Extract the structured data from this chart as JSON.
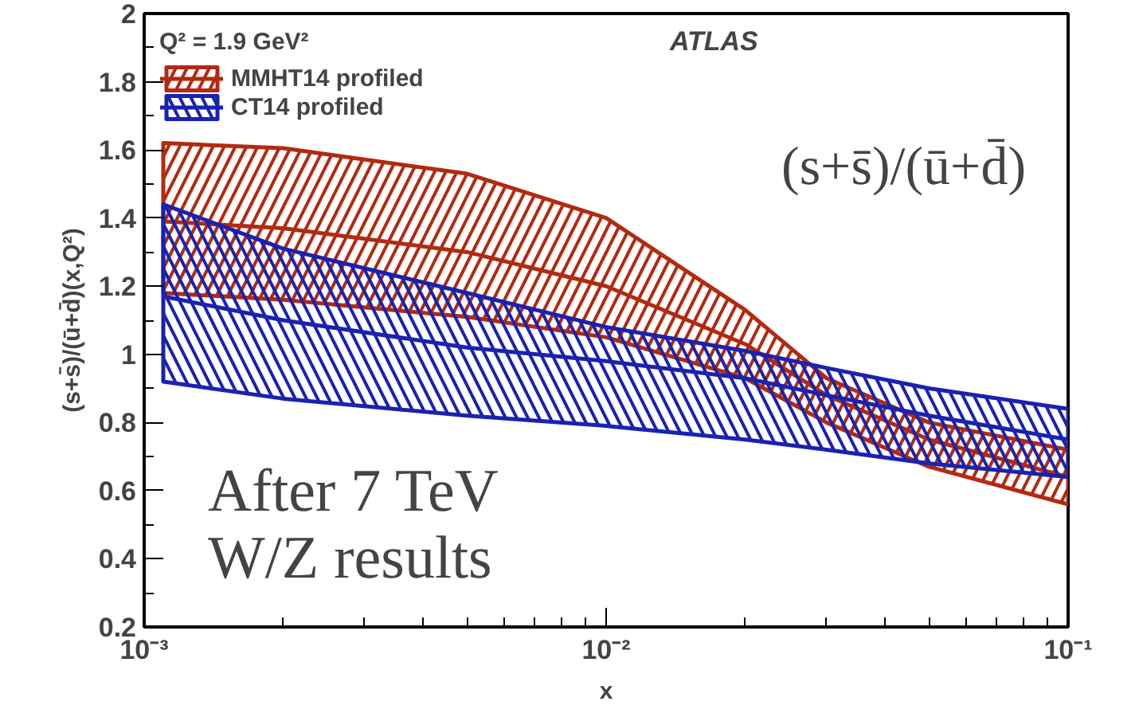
{
  "chart_data": {
    "type": "line",
    "xlabel": "x",
    "ylabel": "(s+s̄)/(ū+d̄)(x,Q²)",
    "log": "x",
    "xlim": [
      0.001,
      0.1
    ],
    "ylim": [
      0.2,
      2
    ],
    "xticks": [
      {
        "value": 0.001,
        "label": "10⁻³"
      },
      {
        "value": 0.01,
        "label": "10⁻²"
      },
      {
        "value": 0.1,
        "label": "10⁻¹"
      }
    ],
    "yticks": [
      0.2,
      0.4,
      0.6,
      0.8,
      1,
      1.2,
      1.4,
      1.6,
      1.8,
      2
    ],
    "grid": false,
    "legend": "top left",
    "legend_title": "Q² = 1.9 GeV²",
    "x": [
      0.0011,
      0.002,
      0.005,
      0.01,
      0.02,
      0.03,
      0.05,
      0.1
    ],
    "series": [
      {
        "name": "MMHT14 profiled",
        "color": "#b22a10",
        "values": [
          1.39,
          1.37,
          1.3,
          1.2,
          1.03,
          0.88,
          0.75,
          0.64
        ],
        "lower": [
          1.18,
          1.16,
          1.11,
          1.05,
          0.93,
          0.8,
          0.67,
          0.56
        ],
        "upper": [
          1.62,
          1.605,
          1.53,
          1.4,
          1.13,
          0.93,
          0.8,
          0.72
        ]
      },
      {
        "name": "CT14 profiled",
        "color": "#1a22b0",
        "values": [
          1.17,
          1.1,
          1.02,
          0.98,
          0.93,
          0.88,
          0.82,
          0.75
        ],
        "lower": [
          0.92,
          0.87,
          0.82,
          0.79,
          0.75,
          0.72,
          0.68,
          0.64
        ],
        "upper": [
          1.44,
          1.31,
          1.18,
          1.08,
          1.01,
          0.96,
          0.9,
          0.84
        ]
      }
    ],
    "annotations": [
      "ATLAS",
      "(s+s̄)/(ū+d̄)",
      "After 7 TeV\nW/Z results"
    ]
  }
}
